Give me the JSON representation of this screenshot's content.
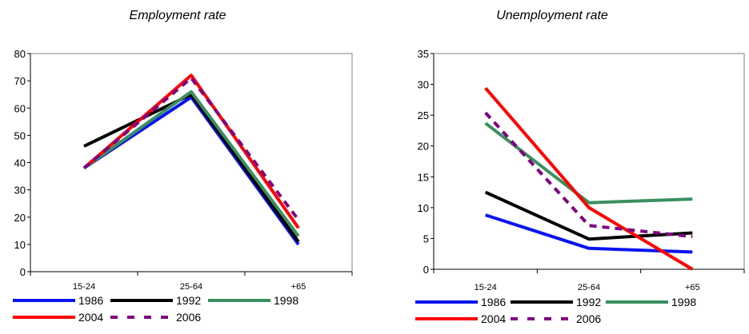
{
  "colors": {
    "1986": "#0a14f0",
    "1992": "#000000",
    "1998": "#3a8f5f",
    "2004": "#ff0000",
    "2006": "#800080"
  },
  "chart_data": [
    {
      "type": "line",
      "title": "Employment rate",
      "categories": [
        "15-24",
        "25-64",
        "+65"
      ],
      "ylim": [
        0,
        80
      ],
      "yticks": [
        0,
        10,
        20,
        30,
        40,
        50,
        60,
        70,
        80
      ],
      "grid": false,
      "legend_position": "bottom",
      "series": [
        {
          "name": "1986",
          "values": [
            38,
            64,
            10
          ],
          "style": "solid"
        },
        {
          "name": "1992",
          "values": [
            46,
            65,
            11
          ],
          "style": "solid"
        },
        {
          "name": "1998",
          "values": [
            38,
            66,
            13
          ],
          "style": "solid"
        },
        {
          "name": "2004",
          "values": [
            38,
            72,
            16
          ],
          "style": "solid"
        },
        {
          "name": "2006",
          "values": [
            38,
            71,
            19
          ],
          "style": "dashed"
        }
      ]
    },
    {
      "type": "line",
      "title": "Unemployment rate",
      "categories": [
        "15-24",
        "25-64",
        "+65"
      ],
      "ylim": [
        0,
        35
      ],
      "yticks": [
        0,
        5,
        10,
        15,
        20,
        25,
        30,
        35
      ],
      "grid": false,
      "legend_position": "bottom",
      "series": [
        {
          "name": "1986",
          "values": [
            8.8,
            3.4,
            2.8
          ],
          "style": "solid"
        },
        {
          "name": "1992",
          "values": [
            12.5,
            4.9,
            5.9
          ],
          "style": "solid"
        },
        {
          "name": "1998",
          "values": [
            23.7,
            10.8,
            11.4
          ],
          "style": "solid"
        },
        {
          "name": "2004",
          "values": [
            29.4,
            10.0,
            0.0
          ],
          "style": "solid"
        },
        {
          "name": "2006",
          "values": [
            25.4,
            7.1,
            5.3
          ],
          "style": "dashed"
        }
      ]
    }
  ]
}
